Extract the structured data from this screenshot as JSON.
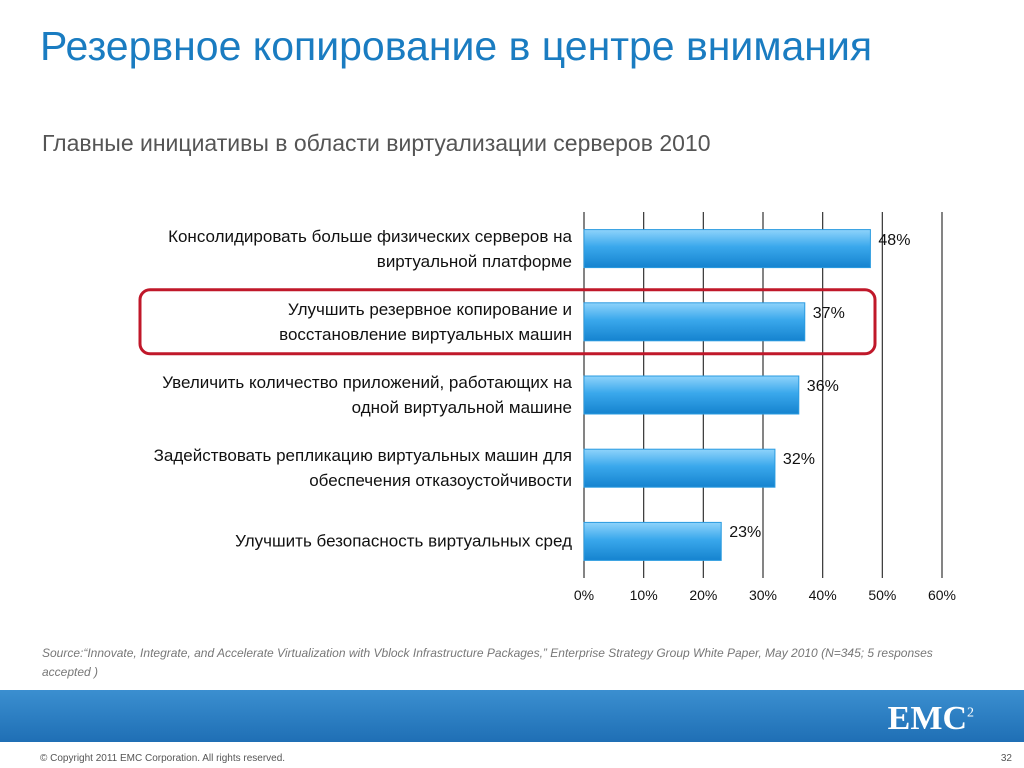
{
  "chart_data": {
    "type": "barh",
    "title": "Резервное копирование в центре внимания",
    "subtitle": "Главные инициативы в области виртуализации серверов 2010",
    "categories": [
      "Консолидировать больше физических серверов на\nвиртуальной платформе",
      "Улучшить резервное копирование и\nвосстановление виртуальных машин",
      "Увеличить количество приложений, работающих на\nодной виртуальной машине",
      "Задействовать репликацию виртуальных машин для\nобеспечения отказоустойчивости",
      "Улучшить безопасность виртуальных сред"
    ],
    "values": [
      48,
      37,
      36,
      32,
      23
    ],
    "value_labels": [
      "48%",
      "37%",
      "36%",
      "32%",
      "23%"
    ],
    "color": "#2a9be0",
    "highlighted_category": 1,
    "xlim": [
      0,
      60
    ],
    "xticks": [
      {
        "value": 0,
        "label": "0%"
      },
      {
        "value": 10,
        "label": "10%"
      },
      {
        "value": 20,
        "label": "20%"
      },
      {
        "value": 30,
        "label": "30%"
      },
      {
        "value": 40,
        "label": "40%"
      },
      {
        "value": 50,
        "label": "50%"
      },
      {
        "value": 60,
        "label": "60%"
      }
    ],
    "grid": true,
    "source": "Source:“Innovate, Integrate, and Accelerate Virtualization with Vblock Infrastructure Packages,” Enterprise Strategy Group White Paper, May 2010 (N=345; 5 responses accepted )"
  },
  "footer": {
    "logo": "EMC",
    "logo_sup": "2",
    "copyright": "© Copyright 2011 EMC Corporation. All rights reserved.",
    "page_number": "32"
  }
}
